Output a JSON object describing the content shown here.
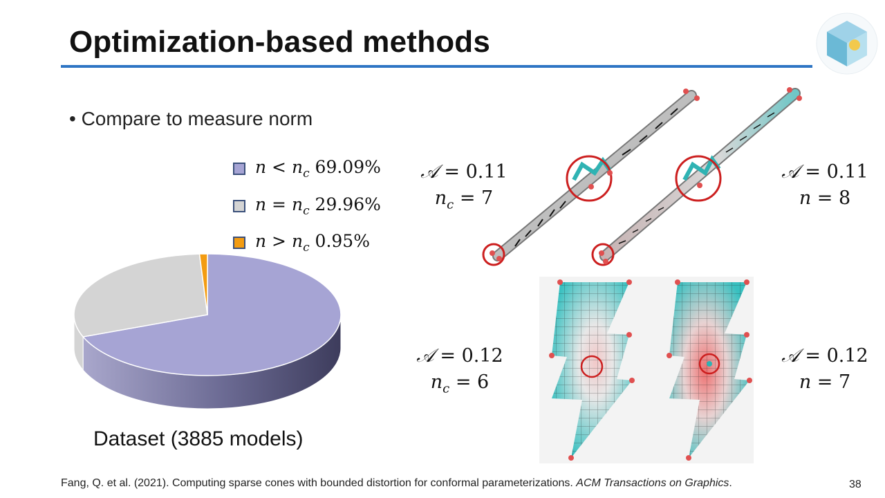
{
  "slide": {
    "title": "Optimization-based methods",
    "bullet": "• Compare to measure norm",
    "page_number": "38"
  },
  "legend": [
    {
      "var": "n",
      "op": " < ",
      "sub_base": "n",
      "sub": "c",
      "value": " 69.09%",
      "color": "#a6a4d4"
    },
    {
      "var": "n",
      "op": " = ",
      "sub_base": "n",
      "sub": "c",
      "value": " 29.96%",
      "color": "#d4d4d4"
    },
    {
      "var": "n",
      "op": " > ",
      "sub_base": "n",
      "sub": "c",
      "value": " 0.95%",
      "color": "#f39c12"
    }
  ],
  "annotations": {
    "top_left": {
      "a_label": "𝒜",
      "a_eq": " = ",
      "a_val": "0.11",
      "n_var": "n",
      "n_sub": "c",
      "n_eq": " = ",
      "n_val": "7"
    },
    "top_right": {
      "a_label": "𝒜",
      "a_eq": " = ",
      "a_val": "0.11",
      "n_var": "n",
      "n_sub": "",
      "n_eq": " = ",
      "n_val": "8"
    },
    "bottom_left": {
      "a_label": "𝒜",
      "a_eq": " = ",
      "a_val": "0.12",
      "n_var": "n",
      "n_sub": "c",
      "n_eq": " = ",
      "n_val": "6"
    },
    "bottom_right": {
      "a_label": "𝒜",
      "a_eq": " = ",
      "a_val": "0.12",
      "n_var": "n",
      "n_sub": "",
      "n_eq": " = ",
      "n_val": "7"
    }
  },
  "dataset_caption": "Dataset (3885 models)",
  "citation": {
    "text": "Fang, Q. et al. (2021). Computing sparse cones with bounded distortion for conformal parameterizations. ",
    "journal": "ACM Transactions on Graphics",
    "end": "."
  },
  "chart_data": {
    "type": "pie",
    "title": "",
    "categories": [
      "n < n_c",
      "n = n_c",
      "n > n_c"
    ],
    "values": [
      69.09,
      29.96,
      0.95
    ],
    "colors": [
      "#a6a4d4",
      "#d4d4d4",
      "#f39c12"
    ],
    "legend_position": "top-right",
    "caption": "Dataset (3885 models)"
  }
}
